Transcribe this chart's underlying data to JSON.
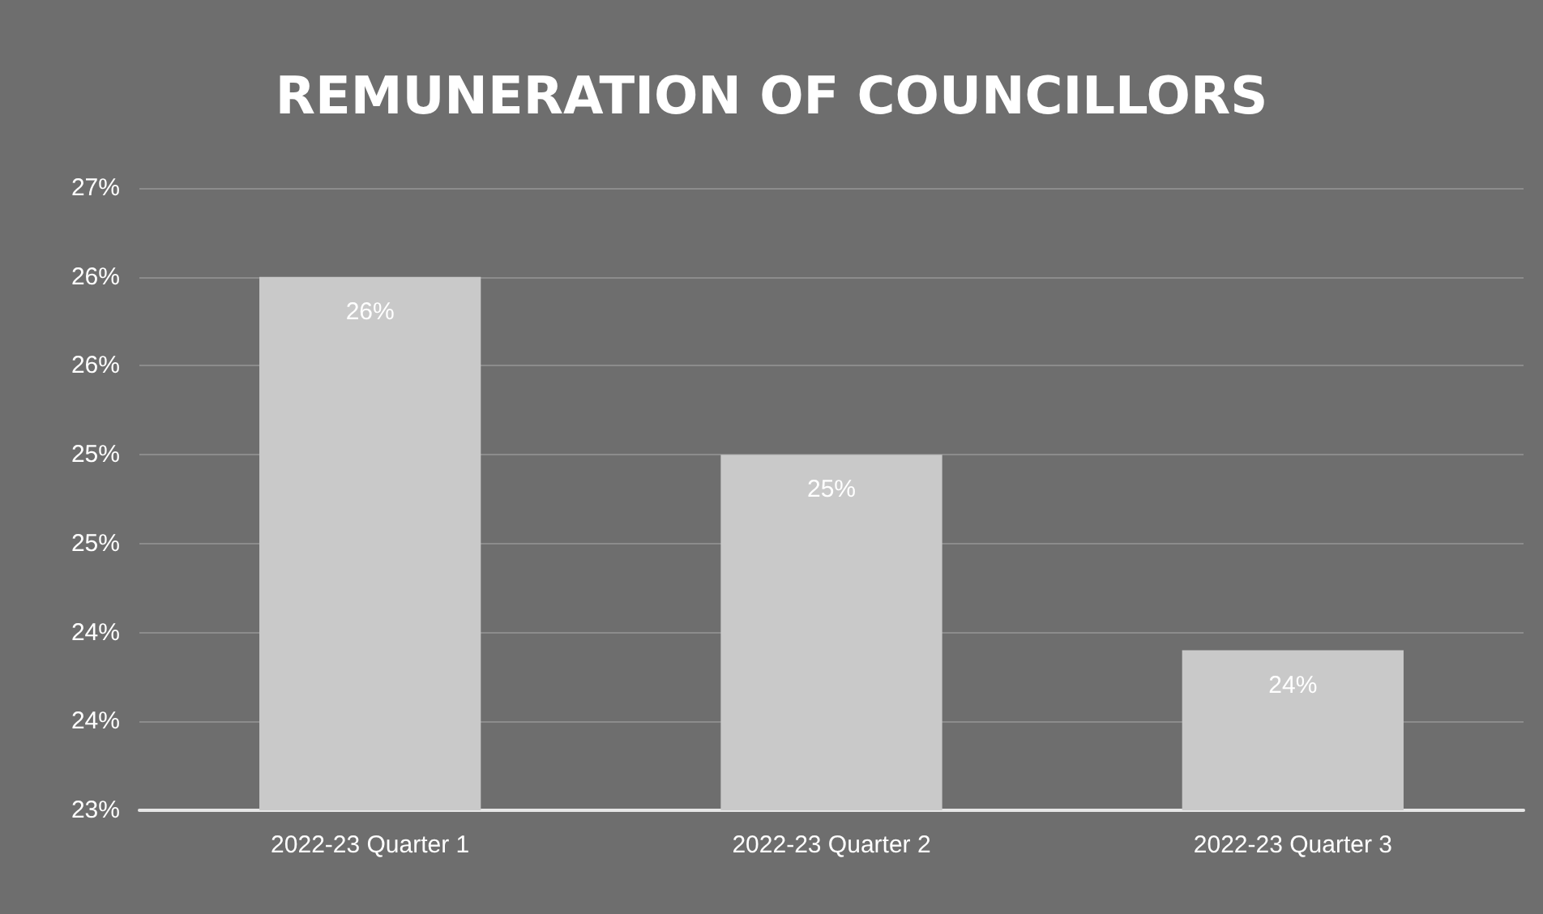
{
  "chart_data": {
    "type": "bar",
    "title": "REMUNERATION OF COUNCILLORS",
    "categories": [
      "2022-23 Quarter 1",
      "2022-23 Quarter 2",
      "2022-23 Quarter 3"
    ],
    "values": [
      26,
      25,
      23.9
    ],
    "color": "#c9c9c9",
    "value_labels": [
      "26%",
      "25%",
      "24%"
    ],
    "ylim": [
      23,
      26.5
    ],
    "yticks": [
      {
        "value": 23,
        "label": "23%"
      },
      {
        "value": 23.5,
        "label": "24%"
      },
      {
        "value": 24,
        "label": "24%"
      },
      {
        "value": 24.5,
        "label": "25%"
      },
      {
        "value": 25,
        "label": "25%"
      },
      {
        "value": 25.5,
        "label": "26%"
      },
      {
        "value": 26,
        "label": "26%"
      },
      {
        "value": 26.5,
        "label": "27%"
      }
    ],
    "grid": true
  }
}
